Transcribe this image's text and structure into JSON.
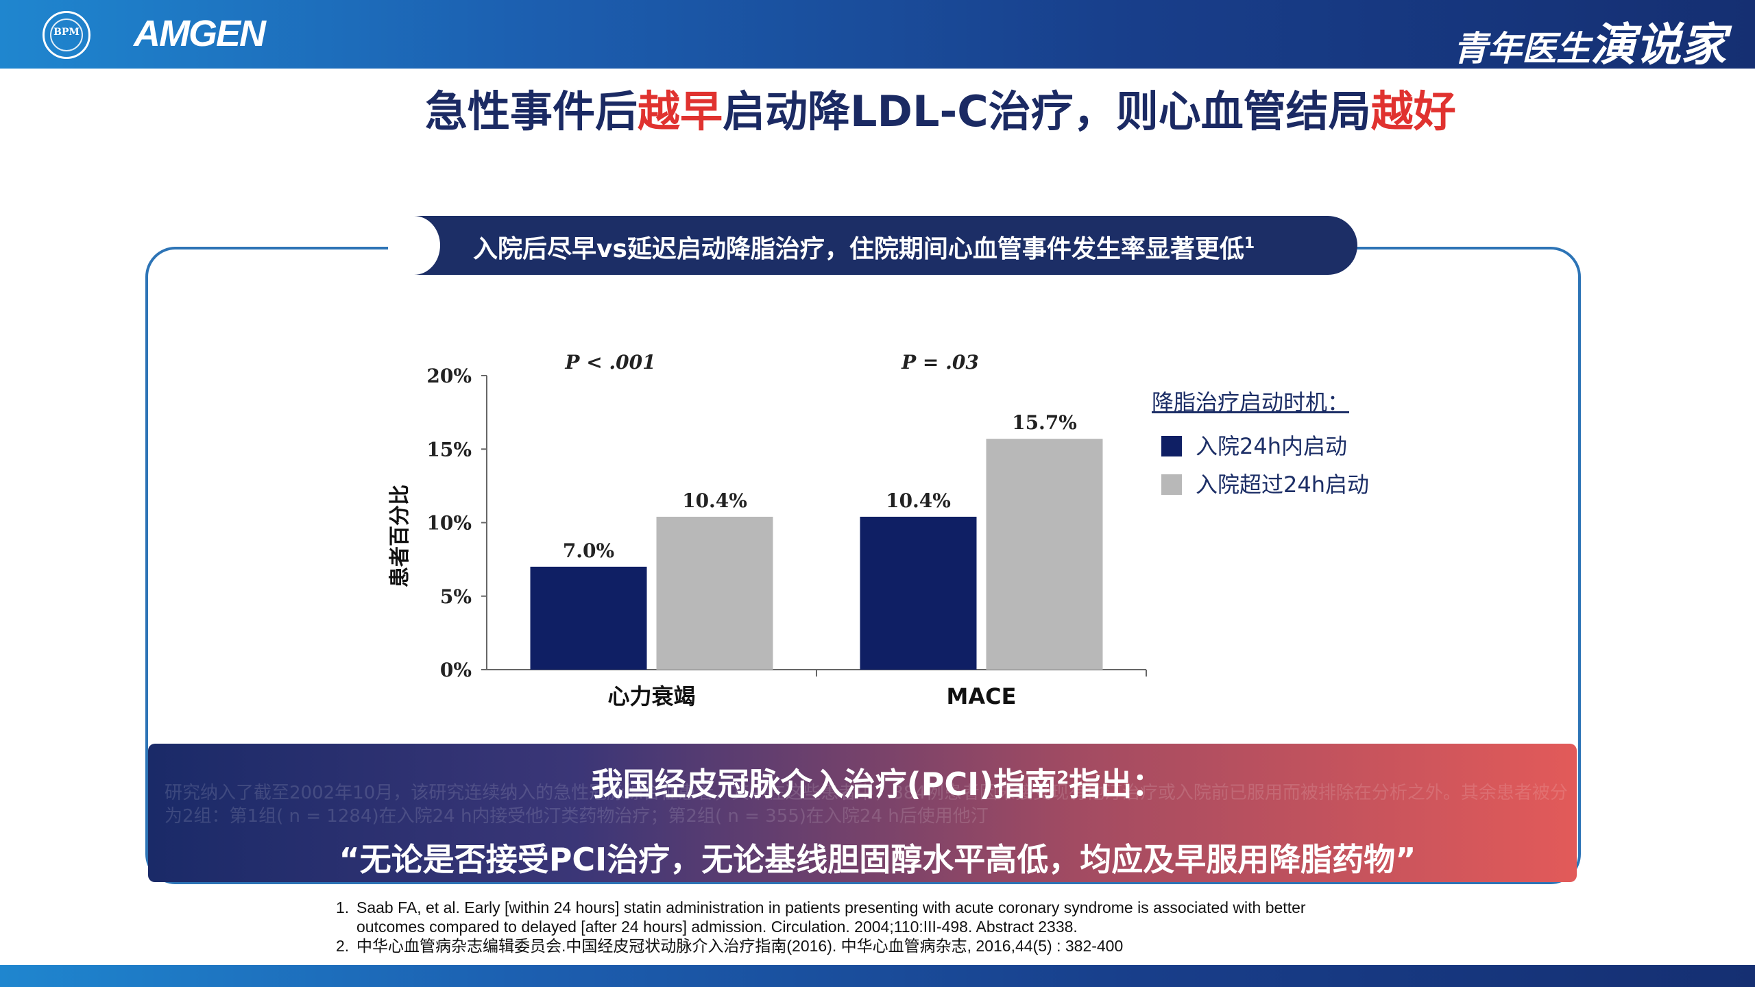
{
  "header": {
    "bpm_logo_text": "BPM",
    "amgen_logo_text": "AMGEN",
    "brand_small": "青年医生",
    "brand_big": "演说家"
  },
  "title": {
    "part1": "急性事件后",
    "highlight1": "越早",
    "part2": "启动降LDL-C治疗，则心血管结局",
    "highlight2": "越好"
  },
  "subtitle": {
    "text": "入院后尽早vs延迟启动降脂治疗，住院期间心血管事件发生率显著更低",
    "sup": "1"
  },
  "colors": {
    "navy": "#0f1f64",
    "gray": "#b8b8b8",
    "accent_red": "#e0322f",
    "title_navy": "#1b2a63"
  },
  "chart_data": {
    "type": "bar",
    "ylabel": "患者百分比",
    "ylim": [
      0,
      20
    ],
    "y_ticks": [
      "0%",
      "5%",
      "10%",
      "15%",
      "20%"
    ],
    "y_tick_values": [
      0,
      5,
      10,
      15,
      20
    ],
    "categories": [
      "心力衰竭",
      "MACE"
    ],
    "p_values": [
      "P < .001",
      "P = .03"
    ],
    "series": [
      {
        "name": "入院24h内启动",
        "values": [
          7.0,
          10.4
        ],
        "labels": [
          "7.0%",
          "10.4%"
        ],
        "color": "#0f1f64"
      },
      {
        "name": "入院超过24h启动",
        "values": [
          10.4,
          15.7
        ],
        "labels": [
          "10.4%",
          "15.7%"
        ],
        "color": "#b8b8b8"
      }
    ],
    "legend_title": "降脂治疗启动时机："
  },
  "callout": {
    "line1_pre": "我国经皮冠脉介入治疗(PCI)指南",
    "line1_sup": "2",
    "line1_post": "指出：",
    "line2": "“无论是否接受PCI治疗，无论基线胆固醇水平高低，均应及早服用降脂药物”",
    "ghost_text": "研究纳入了截至2002年10月，该研究连续纳入的急性冠脉综合征患者，其中在这些患者中，884例患者因未接受现有他汀治疗或入院前已服用而被排除在分析之外。其余患者被分为2组：第1组( n = 1284)在入院24 h内接受他汀类药物治疗；第2组( n = 355)在入院24 h后使用他汀"
  },
  "references": [
    {
      "num": "1.",
      "line1": "Saab FA, et al. Early [within 24 hours] statin administration in patients presenting with acute coronary syndrome is associated with better",
      "line2": "outcomes compared to delayed [after 24 hours] admission. Circulation. 2004;110:III-498. Abstract 2338."
    },
    {
      "num": "2.",
      "line1": " 中华心血管病杂志编辑委员会.中国经皮冠状动脉介入治疗指南(2016). 中华心血管病杂志, 2016,44(5) : 382-400",
      "line2": ""
    }
  ]
}
